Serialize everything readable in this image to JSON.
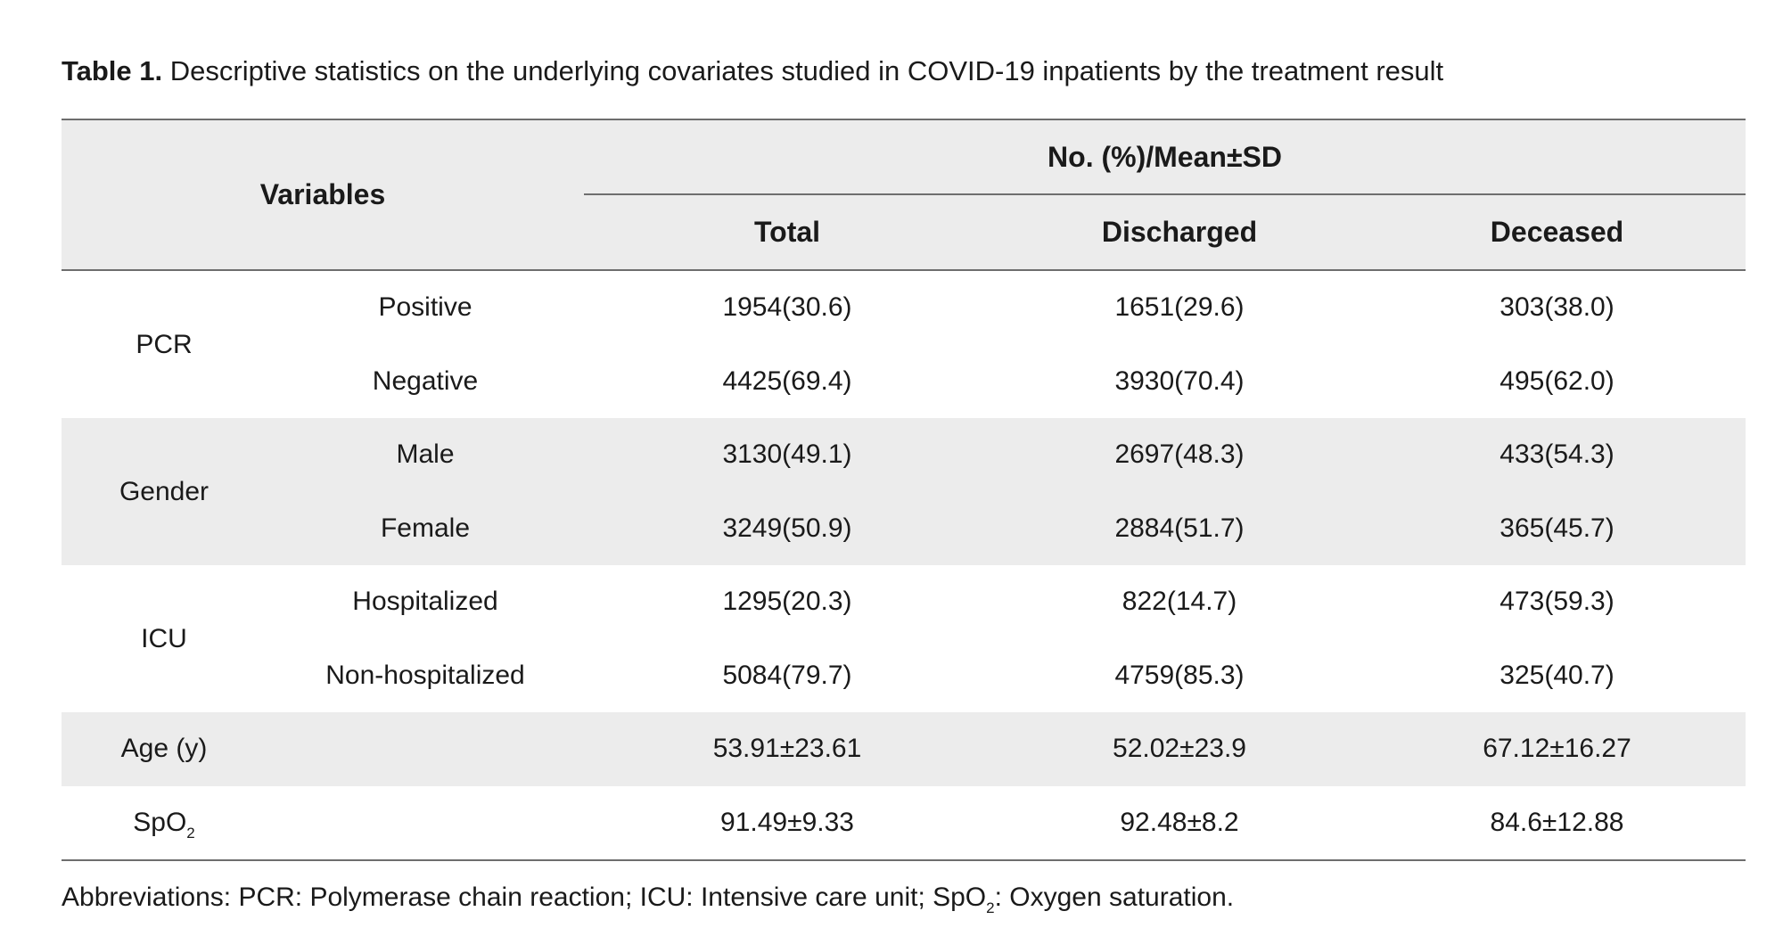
{
  "caption": {
    "label": "Table 1.",
    "text": " Descriptive statistics on the underlying covariates studied in COVID-19 inpatients by the treatment result"
  },
  "header": {
    "variables": "Variables",
    "group": "No. (%)/Mean±SD",
    "columns": [
      "Total",
      "Discharged",
      "Deceased"
    ]
  },
  "rows": {
    "pcr": {
      "label": "PCR",
      "sub": [
        {
          "label": "Positive",
          "total": "1954(30.6)",
          "discharged": "1651(29.6)",
          "deceased": "303(38.0)"
        },
        {
          "label": "Negative",
          "total": "4425(69.4)",
          "discharged": "3930(70.4)",
          "deceased": "495(62.0)"
        }
      ]
    },
    "gender": {
      "label": "Gender",
      "sub": [
        {
          "label": "Male",
          "total": "3130(49.1)",
          "discharged": "2697(48.3)",
          "deceased": "433(54.3)"
        },
        {
          "label": "Female",
          "total": "3249(50.9)",
          "discharged": "2884(51.7)",
          "deceased": "365(45.7)"
        }
      ]
    },
    "icu": {
      "label": "ICU",
      "sub": [
        {
          "label": "Hospitalized",
          "total": "1295(20.3)",
          "discharged": "822(14.7)",
          "deceased": "473(59.3)"
        },
        {
          "label": "Non-hospitalized",
          "total": "5084(79.7)",
          "discharged": "4759(85.3)",
          "deceased": "325(40.7)"
        }
      ]
    },
    "age": {
      "label": "Age (y)",
      "total": "53.91±23.61",
      "discharged": "52.02±23.9",
      "deceased": "67.12±16.27"
    },
    "spo2": {
      "label_main": "SpO",
      "label_sub": "2",
      "total": "91.49±9.33",
      "discharged": "92.48±8.2",
      "deceased": "84.6±12.88"
    }
  },
  "footnote": {
    "part1": "Abbreviations: PCR: Polymerase chain reaction; ICU: Intensive care unit; SpO",
    "sub": "2",
    "part2": ": Oxygen saturation."
  }
}
